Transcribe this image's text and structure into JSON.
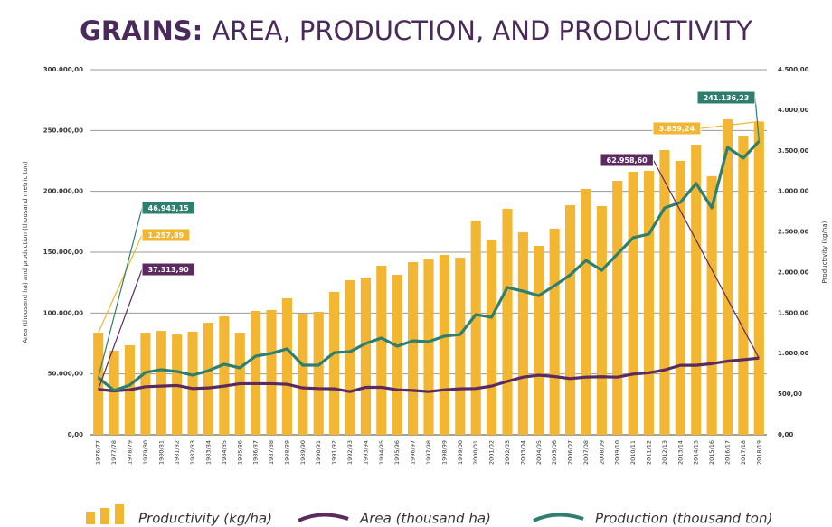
{
  "chart_data": {
    "type": "combo",
    "title_prefix": "GRAINS:",
    "title": "AREA, PRODUCTION, AND PRODUCTIVITY",
    "y_label": "Area (thousand ha) and production (thousand metric ton)",
    "y2_label": "Productivity (kg/ha)",
    "categories": [
      "1976/77",
      "1977/78",
      "1978/79",
      "1979/80",
      "1980/81",
      "1981/82",
      "1982/83",
      "1983/84",
      "1984/85",
      "1985/86",
      "1986/87",
      "1987/88",
      "1988/89",
      "1989/90",
      "1990/91",
      "1991/92",
      "1992/93",
      "1993/94",
      "1994/95",
      "1995/96",
      "1996/97",
      "1997/98",
      "1998/99",
      "1999/00",
      "2000/01",
      "2001/02",
      "2002/03",
      "2003/04",
      "2004/05",
      "2005/06",
      "2006/07",
      "2007/08",
      "2008/09",
      "2009/10",
      "2010/11",
      "2011/12",
      "2012/13",
      "2013/14",
      "2014/15",
      "2015/16",
      "2016/17",
      "2017/18",
      "2018/19"
    ],
    "series": [
      {
        "name": "Productivity (kg/ha)",
        "type": "bar",
        "axis": "y2",
        "color": "#f2b632",
        "values": [
          1257.89,
          1036,
          1103,
          1258,
          1280,
          1236,
          1270,
          1381,
          1459,
          1258,
          1526,
          1537,
          1682,
          1493,
          1515,
          1760,
          1905,
          1938,
          2083,
          1972,
          2128,
          2161,
          2217,
          2183,
          2640,
          2395,
          2785,
          2495,
          2328,
          2540,
          2829,
          3030,
          2818,
          3130,
          3241,
          3253,
          3509,
          3375,
          3576,
          3186,
          3888,
          3676,
          3859.24
        ],
        "value_labels": [
          "1.257,89",
          null,
          null,
          null,
          null,
          null,
          null,
          null,
          null,
          null,
          null,
          null,
          null,
          null,
          null,
          null,
          null,
          null,
          null,
          null,
          null,
          null,
          null,
          null,
          null,
          null,
          null,
          null,
          null,
          null,
          null,
          null,
          null,
          null,
          null,
          null,
          null,
          null,
          null,
          null,
          null,
          null,
          "3.859,24"
        ]
      },
      {
        "name": "Area (thousand ha)",
        "type": "line",
        "axis": "y",
        "color": "#5b2a5f",
        "values": [
          37313.9,
          36000,
          37000,
          39500,
          40000,
          40500,
          38000,
          38500,
          40000,
          42000,
          42000,
          42000,
          41500,
          38500,
          38000,
          37800,
          35500,
          39000,
          39000,
          37000,
          36500,
          35500,
          37000,
          37800,
          38000,
          40000,
          43900,
          47400,
          49000,
          47900,
          46200,
          47400,
          47700,
          47400,
          49900,
          50900,
          53300,
          57100,
          57100,
          58400,
          60500,
          61700,
          62958.6
        ],
        "value_labels": [
          "37.313,90",
          null,
          null,
          null,
          null,
          null,
          null,
          null,
          null,
          null,
          null,
          null,
          null,
          null,
          null,
          null,
          null,
          null,
          null,
          null,
          null,
          null,
          null,
          null,
          null,
          null,
          null,
          null,
          null,
          null,
          null,
          null,
          null,
          null,
          null,
          null,
          null,
          null,
          null,
          null,
          null,
          null,
          "62.958,60"
        ]
      },
      {
        "name": "Production (thousand ton)",
        "type": "line",
        "axis": "y",
        "color": "#2e7f6e",
        "values": [
          46943.15,
          36400,
          40850,
          51250,
          53500,
          52000,
          49000,
          52700,
          58000,
          55000,
          64600,
          66900,
          70600,
          57200,
          57200,
          67600,
          68300,
          75000,
          79500,
          72800,
          77200,
          76500,
          81000,
          82400,
          98800,
          96500,
          121000,
          118000,
          114300,
          122500,
          131400,
          143300,
          135100,
          148500,
          161900,
          164900,
          186400,
          190900,
          206500,
          186400,
          236200,
          227300,
          241136.23
        ],
        "value_labels": [
          "46.943,15",
          null,
          null,
          null,
          null,
          null,
          null,
          null,
          null,
          null,
          null,
          null,
          null,
          null,
          null,
          null,
          null,
          null,
          null,
          null,
          null,
          null,
          null,
          null,
          null,
          null,
          null,
          null,
          null,
          null,
          null,
          null,
          null,
          null,
          null,
          null,
          null,
          null,
          null,
          null,
          null,
          null,
          "241.136,23"
        ]
      }
    ],
    "ylim": [
      0,
      300000
    ],
    "yticks": [
      {
        "value": 0,
        "label": "0,00"
      },
      {
        "value": 50000,
        "label": "50.000,00"
      },
      {
        "value": 100000,
        "label": "100.000,00"
      },
      {
        "value": 150000,
        "label": "150.000,00"
      },
      {
        "value": 200000,
        "label": "200.000,00"
      },
      {
        "value": 250000,
        "label": "250.000,00"
      },
      {
        "value": 300000,
        "label": "300.000,00"
      }
    ],
    "y2lim": [
      0,
      4500
    ],
    "y2ticks": [
      {
        "value": 0,
        "label": "0,00"
      },
      {
        "value": 500,
        "label": "500,00"
      },
      {
        "value": 1000,
        "label": "1.000,00"
      },
      {
        "value": 1500,
        "label": "1.500,00"
      },
      {
        "value": 2000,
        "label": "2.000,00"
      },
      {
        "value": 2500,
        "label": "2.500,00"
      },
      {
        "value": 3000,
        "label": "3.000,00"
      },
      {
        "value": 3500,
        "label": "3.500,00"
      },
      {
        "value": 4000,
        "label": "4.000,00"
      },
      {
        "value": 4500,
        "label": "4.500,00"
      }
    ],
    "grid": true
  }
}
